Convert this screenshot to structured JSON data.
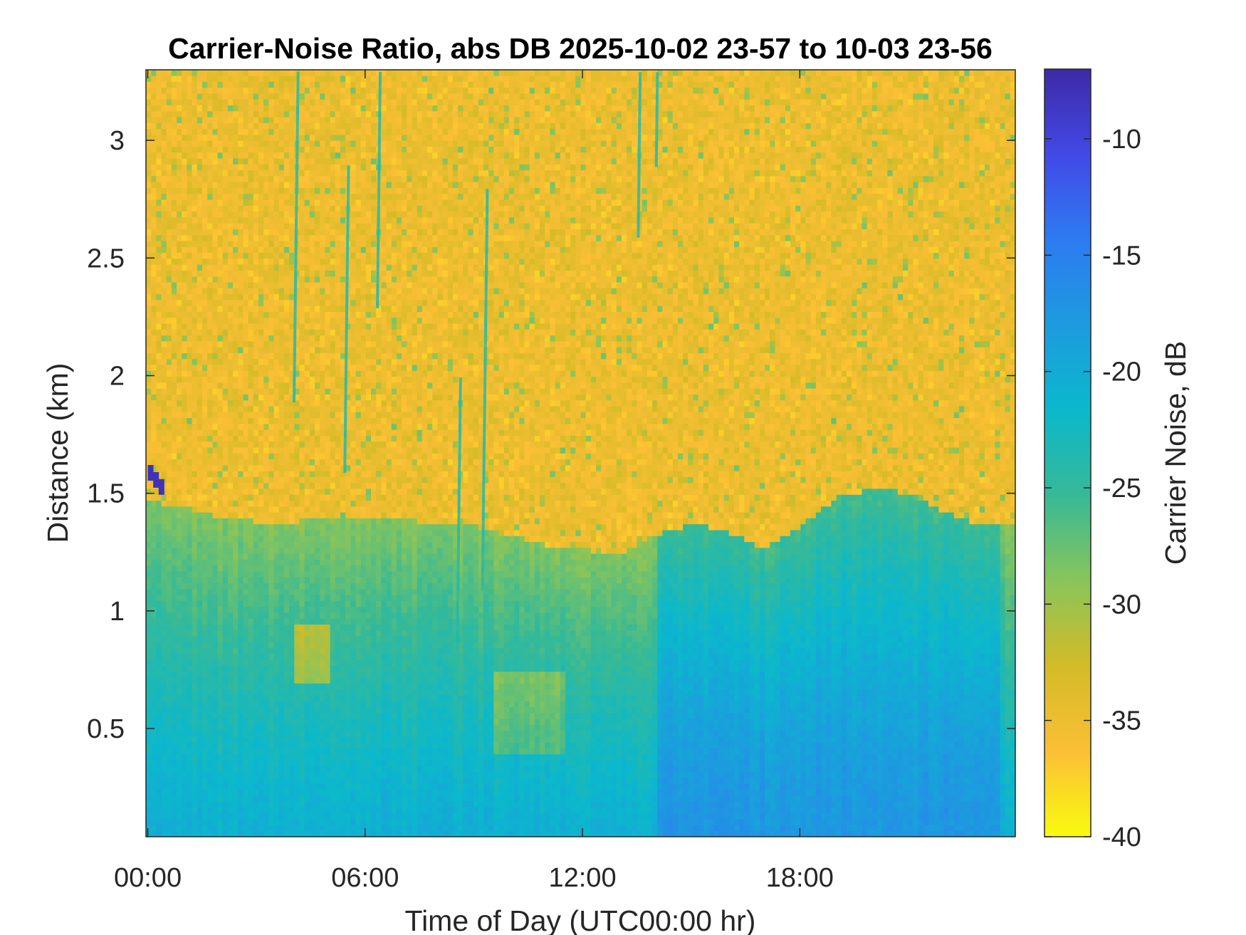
{
  "chart_data": {
    "type": "heatmap",
    "title": "Carrier-Noise Ratio, abs DB 2025-10-02 23-57 to 10-03 23-56",
    "xlabel": "Time of Day (UTC00:00 hr)",
    "ylabel": "Distance (km)",
    "colorbar_label": "Carrier Noise, dB",
    "x_tick_labels": [
      "00:00",
      "06:00",
      "12:00",
      "18:00"
    ],
    "x_tick_values_hr": [
      0,
      6,
      12,
      18
    ],
    "xlim_hr": [
      -0.05,
      23.95
    ],
    "y_tick_labels": [
      "0.5",
      "1",
      "1.5",
      "2",
      "2.5",
      "3"
    ],
    "y_tick_values_km": [
      0.5,
      1,
      1.5,
      2,
      2.5,
      3
    ],
    "ylim_km": [
      0.04,
      3.3
    ],
    "colorbar_ticks": [
      -10,
      -15,
      -20,
      -25,
      -30,
      -35,
      -40
    ],
    "clim_db": [
      -40,
      -7
    ],
    "colormap": "parula (reversed)",
    "colormap_stops": [
      "#f9fb0e",
      "#fbbf36",
      "#d4bb27",
      "#89c55a",
      "#37b996",
      "#0bb8cc",
      "#1d9bdf",
      "#2d7bf1",
      "#4249e6",
      "#3e2aa6"
    ],
    "background_level_db": -35,
    "boundary_layer_top_km": [
      {
        "t": 0,
        "z": 1.45
      },
      {
        "t": 1,
        "z": 1.42
      },
      {
        "t": 2,
        "z": 1.38
      },
      {
        "t": 3,
        "z": 1.36
      },
      {
        "t": 4,
        "z": 1.36
      },
      {
        "t": 5,
        "z": 1.37
      },
      {
        "t": 6,
        "z": 1.38
      },
      {
        "t": 7,
        "z": 1.37
      },
      {
        "t": 8,
        "z": 1.35
      },
      {
        "t": 9,
        "z": 1.34
      },
      {
        "t": 10,
        "z": 1.3
      },
      {
        "t": 11,
        "z": 1.26
      },
      {
        "t": 12,
        "z": 1.24
      },
      {
        "t": 13,
        "z": 1.22
      },
      {
        "t": 14,
        "z": 1.3
      },
      {
        "t": 15,
        "z": 1.35
      },
      {
        "t": 16,
        "z": 1.32
      },
      {
        "t": 17,
        "z": 1.24
      },
      {
        "t": 18,
        "z": 1.34
      },
      {
        "t": 19,
        "z": 1.46
      },
      {
        "t": 20,
        "z": 1.5
      },
      {
        "t": 21,
        "z": 1.48
      },
      {
        "t": 22,
        "z": 1.4
      },
      {
        "t": 23,
        "z": 1.34
      },
      {
        "t": 24,
        "z": 1.34
      }
    ]
  }
}
